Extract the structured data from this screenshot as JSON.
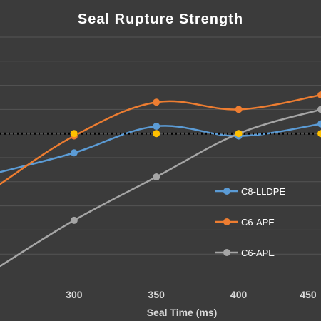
{
  "chart_data": {
    "type": "line",
    "title": "Seal Rupture Strength",
    "xlabel": "Seal Time (ms)",
    "ylabel": "",
    "xlim": [
      255,
      450
    ],
    "ylim": [
      0,
      10
    ],
    "x_ticks": [
      300,
      350,
      400,
      450
    ],
    "grid": true,
    "legend_placement": "right",
    "series": [
      {
        "name": "C8-LLDPE",
        "color": "#5b9bd5",
        "x": [
          255,
          300,
          350,
          400,
          450
        ],
        "y": [
          4.4,
          5.2,
          6.3,
          5.9,
          6.4
        ]
      },
      {
        "name": "C6-APE",
        "color": "#ed7d31",
        "x": [
          255,
          300,
          350,
          400,
          450
        ],
        "y": [
          3.9,
          5.9,
          7.3,
          7.0,
          7.6
        ]
      },
      {
        "name": "C6-APE",
        "color": "#a5a5a5",
        "x": [
          255,
          300,
          350,
          400,
          450
        ],
        "y": [
          0.5,
          2.4,
          4.2,
          6.0,
          7.0
        ]
      }
    ],
    "reference_line": {
      "y": 6.0,
      "color": "#000000",
      "marker_color": "#ffc000",
      "marker_x": [
        300,
        350,
        400,
        450
      ]
    }
  }
}
